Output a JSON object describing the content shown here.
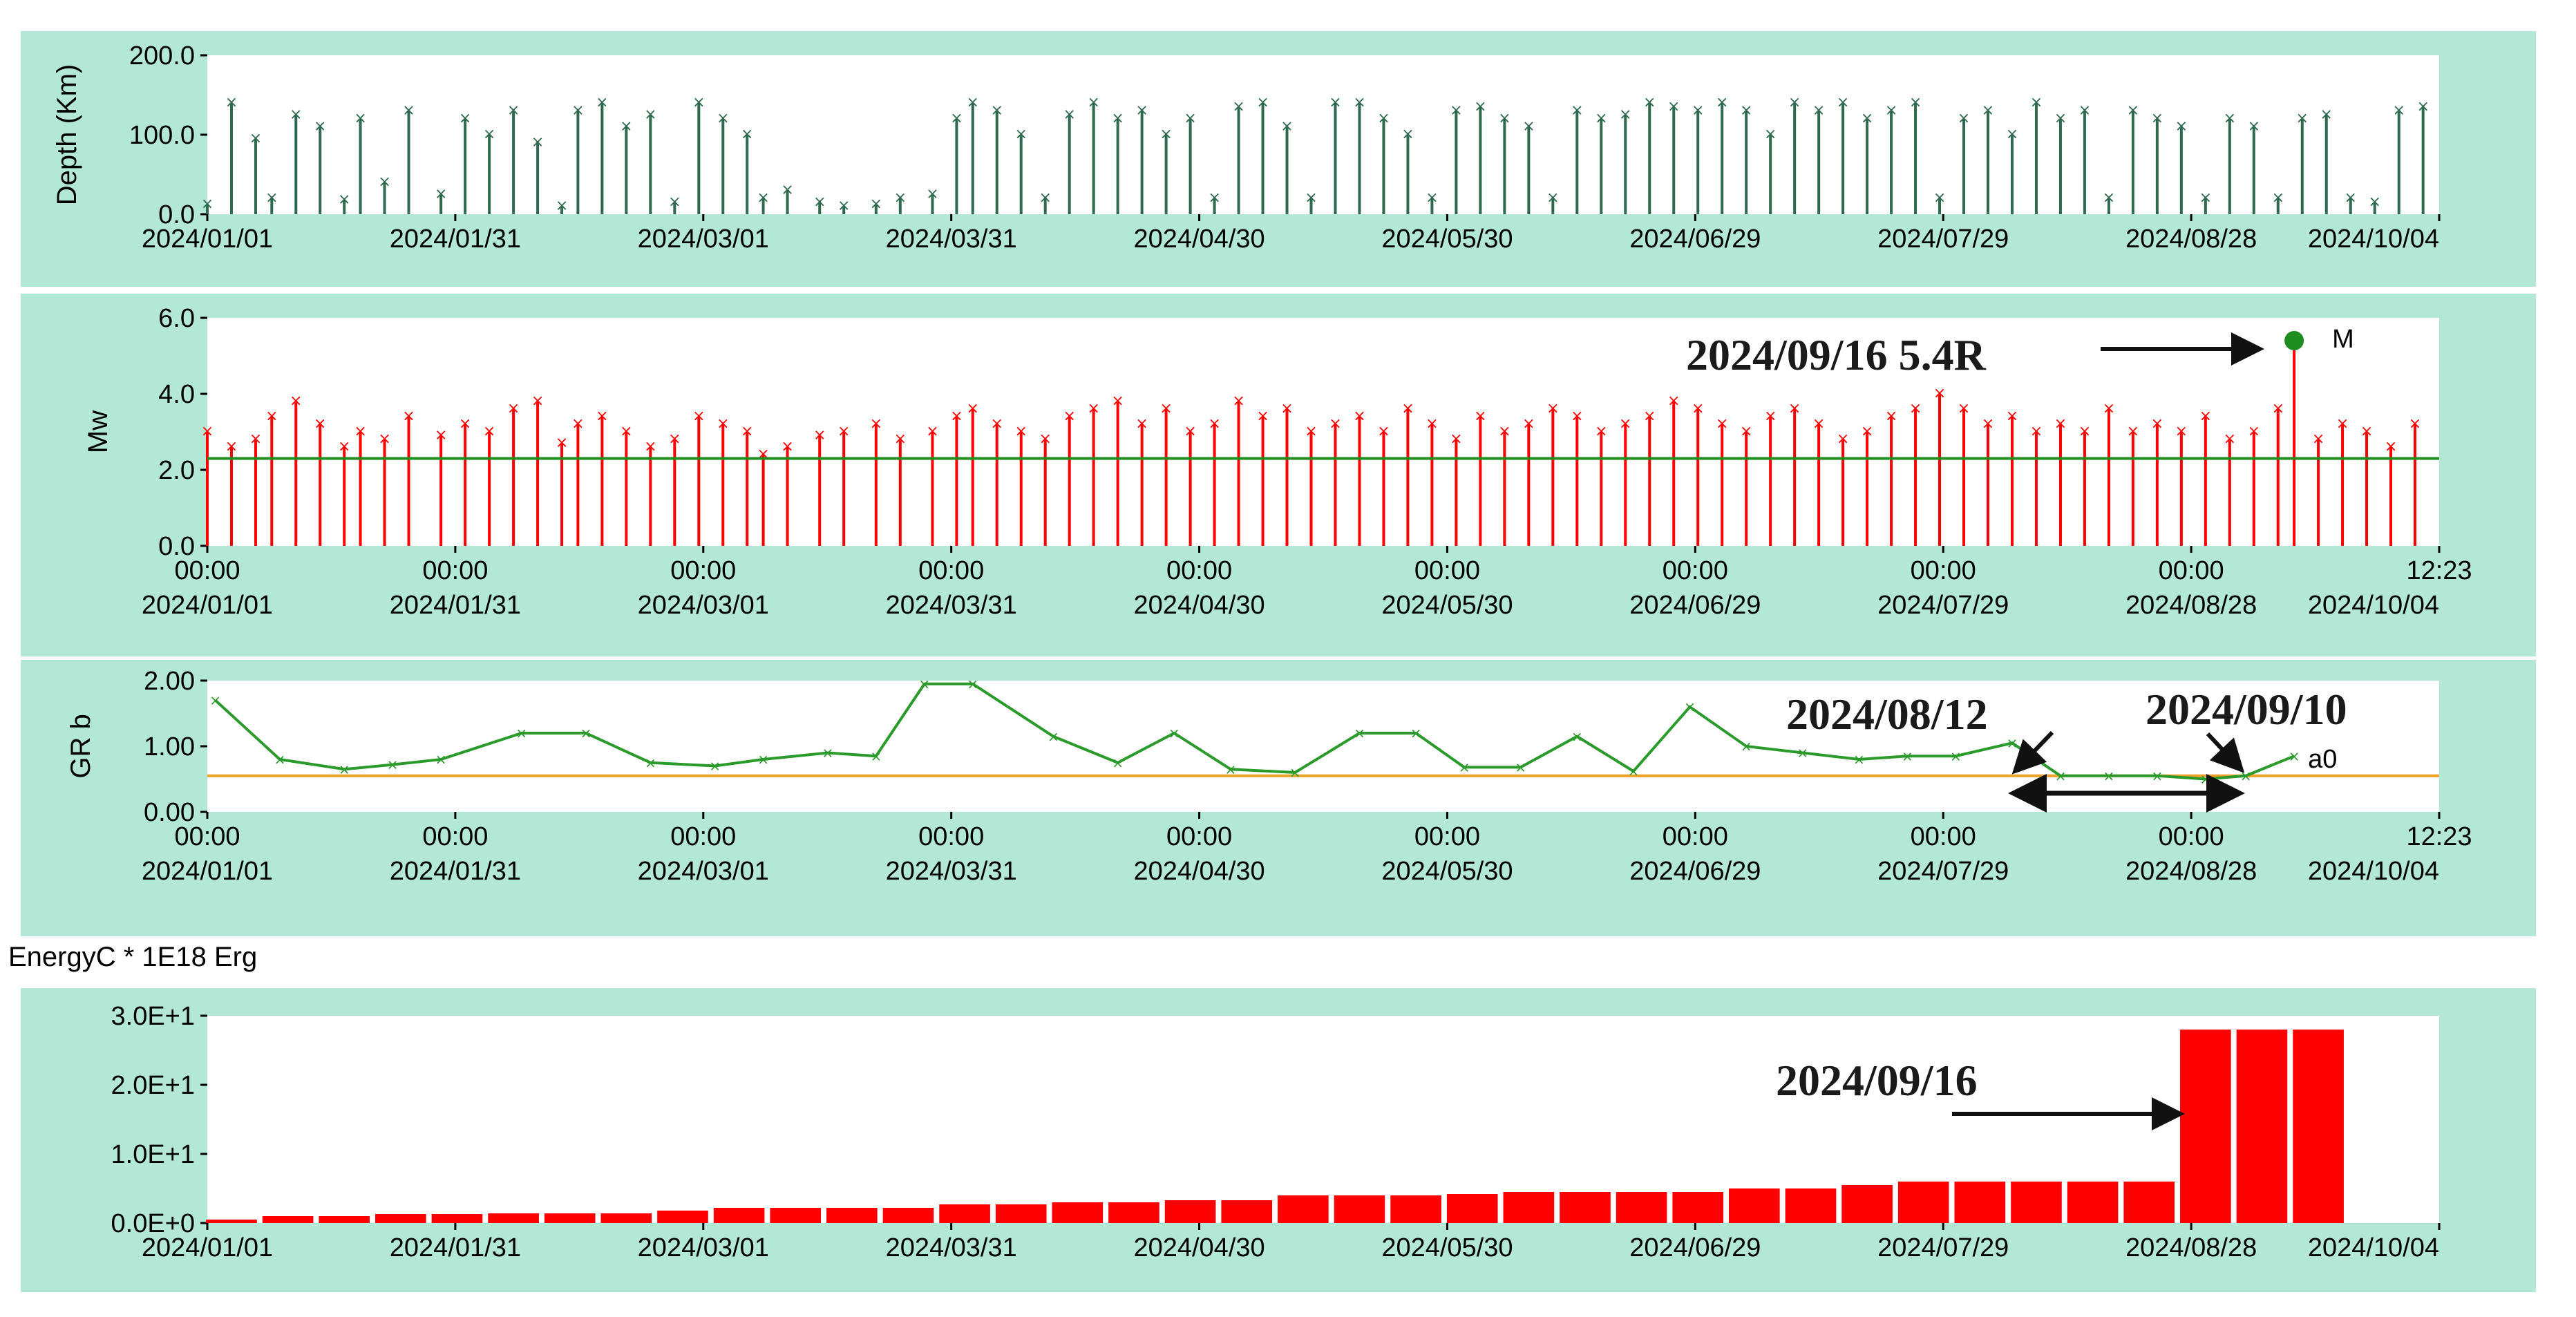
{
  "colors": {
    "panel_bg": "#b3e8d6",
    "plot_bg": "#ffffff",
    "depth": "#2f6a4f",
    "mw": "#ff0000",
    "mw_mean": "#1f8c1f",
    "grb": "#2a9a2a",
    "grb_ref": "#f0a020",
    "energy": "#ff0000",
    "annotation": "#111111"
  },
  "chart_data": [
    {
      "type": "bar",
      "id": "depth",
      "ylabel": "Depth (Km)",
      "ylim": [
        0,
        200
      ],
      "yticks": [
        "0.0",
        "100.0",
        "200.0"
      ],
      "xlim": [
        "2024/01/01",
        "2024/10/04"
      ],
      "xticks": [
        "2024/01/01",
        "2024/01/31",
        "2024/03/01",
        "2024/03/31",
        "2024/04/30",
        "2024/05/30",
        "2024/06/29",
        "2024/07/29",
        "2024/08/28",
        "2024/10/04"
      ],
      "x": [
        "2024/01/01",
        "2024/01/04",
        "2024/01/07",
        "2024/01/09",
        "2024/01/12",
        "2024/01/15",
        "2024/01/18",
        "2024/01/20",
        "2024/01/23",
        "2024/01/26",
        "2024/01/30",
        "2024/02/02",
        "2024/02/05",
        "2024/02/08",
        "2024/02/11",
        "2024/02/14",
        "2024/02/16",
        "2024/02/19",
        "2024/02/22",
        "2024/02/25",
        "2024/02/28",
        "2024/03/02",
        "2024/03/05",
        "2024/03/08",
        "2024/03/10",
        "2024/03/13",
        "2024/03/17",
        "2024/03/20",
        "2024/03/24",
        "2024/03/27",
        "2024/03/31",
        "2024/04/03",
        "2024/04/05",
        "2024/04/08",
        "2024/04/11",
        "2024/04/14",
        "2024/04/17",
        "2024/04/20",
        "2024/04/23",
        "2024/04/26",
        "2024/04/29",
        "2024/05/02",
        "2024/05/05",
        "2024/05/08",
        "2024/05/11",
        "2024/05/14",
        "2024/05/17",
        "2024/05/20",
        "2024/05/23",
        "2024/05/26",
        "2024/05/29",
        "2024/06/01",
        "2024/06/04",
        "2024/06/07",
        "2024/06/10",
        "2024/06/13",
        "2024/06/16",
        "2024/06/19",
        "2024/06/22",
        "2024/06/25",
        "2024/06/28",
        "2024/07/01",
        "2024/07/04",
        "2024/07/07",
        "2024/07/10",
        "2024/07/13",
        "2024/07/16",
        "2024/07/19",
        "2024/07/22",
        "2024/07/25",
        "2024/07/28",
        "2024/07/31",
        "2024/08/03",
        "2024/08/06",
        "2024/08/09",
        "2024/08/12",
        "2024/08/15",
        "2024/08/18",
        "2024/08/21",
        "2024/08/24",
        "2024/08/27",
        "2024/08/30",
        "2024/09/02",
        "2024/09/05",
        "2024/09/08",
        "2024/09/11",
        "2024/09/14",
        "2024/09/17",
        "2024/09/20",
        "2024/09/23",
        "2024/09/26",
        "2024/09/29",
        "2024/10/02"
      ],
      "values": [
        12,
        140,
        95,
        20,
        125,
        110,
        18,
        120,
        40,
        130,
        25,
        120,
        100,
        130,
        90,
        10,
        130,
        140,
        110,
        125,
        15,
        140,
        120,
        100,
        20,
        30,
        15,
        10,
        12,
        20,
        25,
        120,
        140,
        130,
        100,
        20,
        125,
        140,
        120,
        130,
        100,
        120,
        20,
        135,
        140,
        110,
        20,
        140,
        140,
        120,
        100,
        20,
        130,
        135,
        120,
        110,
        20,
        130,
        120,
        125,
        140,
        135,
        130,
        140,
        130,
        100,
        140,
        130,
        140,
        120,
        130,
        140,
        20,
        120,
        130,
        100,
        140,
        120,
        130,
        20,
        130,
        120,
        110,
        20,
        120,
        110,
        20,
        120,
        125,
        20,
        15,
        130,
        135
      ]
    },
    {
      "type": "bar",
      "id": "mw",
      "ylabel": "Mw",
      "ylim": [
        0,
        6
      ],
      "yticks": [
        "0.0",
        "2.0",
        "4.0",
        "6.0"
      ],
      "xlim": [
        "2024/01/01",
        "2024/10/04"
      ],
      "xticks_time": [
        "00:00",
        "00:00",
        "00:00",
        "00:00",
        "00:00",
        "00:00",
        "00:00",
        "00:00",
        "00:00",
        "12:23"
      ],
      "xticks": [
        "2024/01/01",
        "2024/01/31",
        "2024/03/01",
        "2024/03/31",
        "2024/04/30",
        "2024/05/30",
        "2024/06/29",
        "2024/07/29",
        "2024/08/28",
        "2024/10/04"
      ],
      "x": [
        "2024/01/01",
        "2024/01/04",
        "2024/01/07",
        "2024/01/09",
        "2024/01/12",
        "2024/01/15",
        "2024/01/18",
        "2024/01/20",
        "2024/01/23",
        "2024/01/26",
        "2024/01/30",
        "2024/02/02",
        "2024/02/05",
        "2024/02/08",
        "2024/02/11",
        "2024/02/14",
        "2024/02/16",
        "2024/02/19",
        "2024/02/22",
        "2024/02/25",
        "2024/02/28",
        "2024/03/02",
        "2024/03/05",
        "2024/03/08",
        "2024/03/10",
        "2024/03/13",
        "2024/03/17",
        "2024/03/20",
        "2024/03/24",
        "2024/03/27",
        "2024/03/31",
        "2024/04/03",
        "2024/04/05",
        "2024/04/08",
        "2024/04/11",
        "2024/04/14",
        "2024/04/17",
        "2024/04/20",
        "2024/04/23",
        "2024/04/26",
        "2024/04/29",
        "2024/05/02",
        "2024/05/05",
        "2024/05/08",
        "2024/05/11",
        "2024/05/14",
        "2024/05/17",
        "2024/05/20",
        "2024/05/23",
        "2024/05/26",
        "2024/05/29",
        "2024/06/01",
        "2024/06/04",
        "2024/06/07",
        "2024/06/10",
        "2024/06/13",
        "2024/06/16",
        "2024/06/19",
        "2024/06/22",
        "2024/06/25",
        "2024/06/28",
        "2024/07/01",
        "2024/07/04",
        "2024/07/07",
        "2024/07/10",
        "2024/07/13",
        "2024/07/16",
        "2024/07/19",
        "2024/07/22",
        "2024/07/25",
        "2024/07/28",
        "2024/07/31",
        "2024/08/03",
        "2024/08/06",
        "2024/08/09",
        "2024/08/12",
        "2024/08/15",
        "2024/08/18",
        "2024/08/21",
        "2024/08/24",
        "2024/08/27",
        "2024/08/30",
        "2024/09/02",
        "2024/09/05",
        "2024/09/08",
        "2024/09/11",
        "2024/09/14",
        "2024/09/16",
        "2024/09/19",
        "2024/09/22",
        "2024/09/25",
        "2024/09/28",
        "2024/10/01"
      ],
      "values": [
        3.0,
        2.6,
        2.8,
        3.4,
        3.8,
        3.2,
        2.6,
        3.0,
        2.8,
        3.4,
        2.9,
        3.2,
        3.0,
        3.6,
        3.8,
        2.7,
        3.2,
        3.4,
        3.0,
        2.6,
        2.8,
        3.4,
        3.2,
        3.0,
        2.4,
        2.6,
        2.9,
        3.0,
        3.2,
        2.8,
        3.0,
        3.4,
        3.6,
        3.2,
        3.0,
        2.8,
        3.4,
        3.6,
        3.8,
        3.2,
        3.6,
        3.0,
        3.2,
        3.8,
        3.4,
        3.6,
        3.0,
        3.2,
        3.4,
        3.0,
        3.6,
        3.2,
        2.8,
        3.4,
        3.0,
        3.2,
        3.6,
        3.4,
        3.0,
        3.2,
        3.4,
        3.8,
        3.6,
        3.2,
        3.0,
        3.4,
        3.6,
        3.2,
        2.8,
        3.0,
        3.4,
        3.6,
        4.0,
        3.6,
        3.2,
        3.4,
        3.0,
        3.2,
        3.0,
        3.6,
        3.0,
        3.2,
        3.0,
        3.4,
        2.8,
        3.0,
        3.6,
        5.4,
        2.8,
        3.2,
        3.0,
        2.6,
        3.2
      ],
      "mean_line": 2.3,
      "highlight": {
        "x": "2024/09/16",
        "y": 5.4,
        "marker_label": "M"
      },
      "annotation": "2024/09/16 5.4R"
    },
    {
      "type": "line",
      "id": "grb",
      "ylabel": "GR b",
      "ylim": [
        0,
        2
      ],
      "yticks": [
        "0.00",
        "1.00",
        "2.00"
      ],
      "xlim": [
        "2024/01/01",
        "2024/10/04"
      ],
      "xticks_time": [
        "00:00",
        "00:00",
        "00:00",
        "00:00",
        "00:00",
        "00:00",
        "00:00",
        "00:00",
        "00:00",
        "12:23"
      ],
      "xticks": [
        "2024/01/01",
        "2024/01/31",
        "2024/03/01",
        "2024/03/31",
        "2024/04/30",
        "2024/05/30",
        "2024/06/29",
        "2024/07/29",
        "2024/08/28",
        "2024/10/04"
      ],
      "x": [
        "2024/01/02",
        "2024/01/10",
        "2024/01/18",
        "2024/01/24",
        "2024/01/30",
        "2024/02/09",
        "2024/02/17",
        "2024/02/25",
        "2024/03/04",
        "2024/03/10",
        "2024/03/18",
        "2024/03/24",
        "2024/03/30",
        "2024/04/05",
        "2024/04/15",
        "2024/04/23",
        "2024/04/30",
        "2024/05/07",
        "2024/05/15",
        "2024/05/23",
        "2024/05/30",
        "2024/06/05",
        "2024/06/12",
        "2024/06/19",
        "2024/06/26",
        "2024/07/03",
        "2024/07/10",
        "2024/07/17",
        "2024/07/24",
        "2024/07/30",
        "2024/08/05",
        "2024/08/12",
        "2024/08/18",
        "2024/08/24",
        "2024/08/30",
        "2024/09/05",
        "2024/09/10",
        "2024/09/16"
      ],
      "values": [
        1.7,
        0.8,
        0.65,
        0.72,
        0.8,
        1.2,
        1.2,
        0.75,
        0.7,
        0.8,
        0.9,
        0.85,
        1.95,
        1.95,
        1.15,
        0.75,
        1.2,
        0.65,
        0.6,
        1.2,
        1.2,
        0.68,
        0.68,
        1.15,
        0.62,
        1.6,
        1.0,
        0.9,
        0.8,
        0.85,
        0.85,
        1.05,
        0.55,
        0.55,
        0.55,
        0.5,
        0.55,
        0.85
      ],
      "reference_line": 0.55,
      "reference_label": "a0",
      "annotations": [
        "2024/08/12",
        "2024/09/10"
      ]
    },
    {
      "type": "bar",
      "id": "energy",
      "title": "EnergyC * 1E18 Erg",
      "ylim": [
        0,
        30
      ],
      "yticks": [
        "0.0E+0",
        "1.0E+1",
        "2.0E+1",
        "3.0E+1"
      ],
      "xlim": [
        "2024/01/01",
        "2024/10/04"
      ],
      "xticks": [
        "2024/01/01",
        "2024/01/31",
        "2024/03/01",
        "2024/03/31",
        "2024/04/30",
        "2024/05/30",
        "2024/06/29",
        "2024/07/29",
        "2024/08/28",
        "2024/10/04"
      ],
      "x": [
        "2024/01/04",
        "2024/01/11",
        "2024/01/18",
        "2024/01/25",
        "2024/02/01",
        "2024/02/08",
        "2024/02/15",
        "2024/02/22",
        "2024/02/29",
        "2024/03/07",
        "2024/03/14",
        "2024/03/21",
        "2024/03/28",
        "2024/04/04",
        "2024/04/11",
        "2024/04/18",
        "2024/04/25",
        "2024/05/02",
        "2024/05/09",
        "2024/05/16",
        "2024/05/23",
        "2024/05/30",
        "2024/06/06",
        "2024/06/13",
        "2024/06/20",
        "2024/06/27",
        "2024/07/04",
        "2024/07/11",
        "2024/07/18",
        "2024/07/25",
        "2024/08/01",
        "2024/08/08",
        "2024/08/15",
        "2024/08/22",
        "2024/08/29",
        "2024/09/05",
        "2024/09/12",
        "2024/09/19",
        "2024/09/26"
      ],
      "values": [
        0.5,
        1.0,
        1.0,
        1.3,
        1.3,
        1.4,
        1.4,
        1.4,
        1.8,
        2.2,
        2.2,
        2.2,
        2.2,
        2.7,
        2.7,
        3.0,
        3.0,
        3.3,
        3.3,
        4.0,
        4.0,
        4.0,
        4.2,
        4.5,
        4.5,
        4.5,
        4.5,
        5.0,
        5.0,
        5.5,
        6.0,
        6.0,
        6.0,
        6.0,
        6.0,
        28.0,
        28.0,
        28.0,
        0
      ],
      "annotation": "2024/09/16"
    }
  ]
}
